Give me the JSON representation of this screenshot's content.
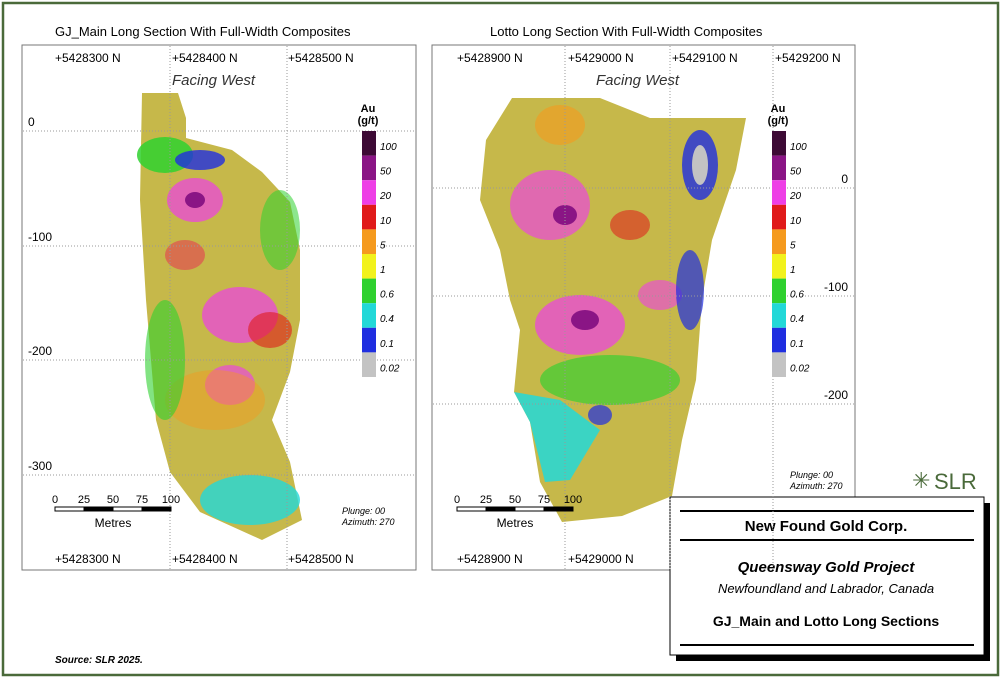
{
  "panels": [
    {
      "title": "GJ_Main Long Section With Full-Width Composites",
      "facing": "Facing West",
      "eastings_top": [
        "+5428300 N",
        "+5428400 N",
        "+5428500 N"
      ],
      "eastings_bottom": [
        "+5428300 N",
        "+5428400 N",
        "+5428500 N"
      ],
      "elevations": [
        "0",
        "-100",
        "-200",
        "-300"
      ],
      "scale_ticks": [
        "0",
        "25",
        "50",
        "75",
        "100"
      ],
      "scale_unit": "Metres",
      "plunge": "Plunge: 00",
      "azimuth": "Azimuth: 270"
    },
    {
      "title": "Lotto Long Section With Full-Width Composites",
      "facing": "Facing West",
      "eastings_top": [
        "+5428900 N",
        "+5429000 N",
        "+5429100 N",
        "+5429200 N"
      ],
      "eastings_bottom": [
        "+5428900 N",
        "+5429000 N"
      ],
      "elevations": [
        "0",
        "-100",
        "-200"
      ],
      "scale_ticks": [
        "0",
        "25",
        "50",
        "75",
        "100"
      ],
      "scale_unit": "Metres",
      "plunge": "Plunge: 00",
      "azimuth": "Azimuth: 270"
    }
  ],
  "legend": {
    "title": "Au",
    "unit": "(g/t)",
    "classes": [
      {
        "label": "100",
        "color": "#3d0a35"
      },
      {
        "label": "50",
        "color": "#8a1585"
      },
      {
        "label": "20",
        "color": "#ee3fe6"
      },
      {
        "label": "10",
        "color": "#e01a1a"
      },
      {
        "label": "5",
        "color": "#f59a1e"
      },
      {
        "label": "1",
        "color": "#f2f21c"
      },
      {
        "label": "0.6",
        "color": "#2fd12f"
      },
      {
        "label": "0.4",
        "color": "#22d8d8"
      },
      {
        "label": "0.1",
        "color": "#1f2ee0"
      },
      {
        "label": "0.02",
        "color": "#c3c3c3"
      }
    ]
  },
  "logo": "SLR",
  "title_block": {
    "company": "New Found Gold Corp.",
    "project": "Queensway Gold Project",
    "location": "Newfoundland and Labrador, Canada",
    "figure": "GJ_Main and Lotto Long Sections"
  },
  "source": "Source: SLR 2025."
}
